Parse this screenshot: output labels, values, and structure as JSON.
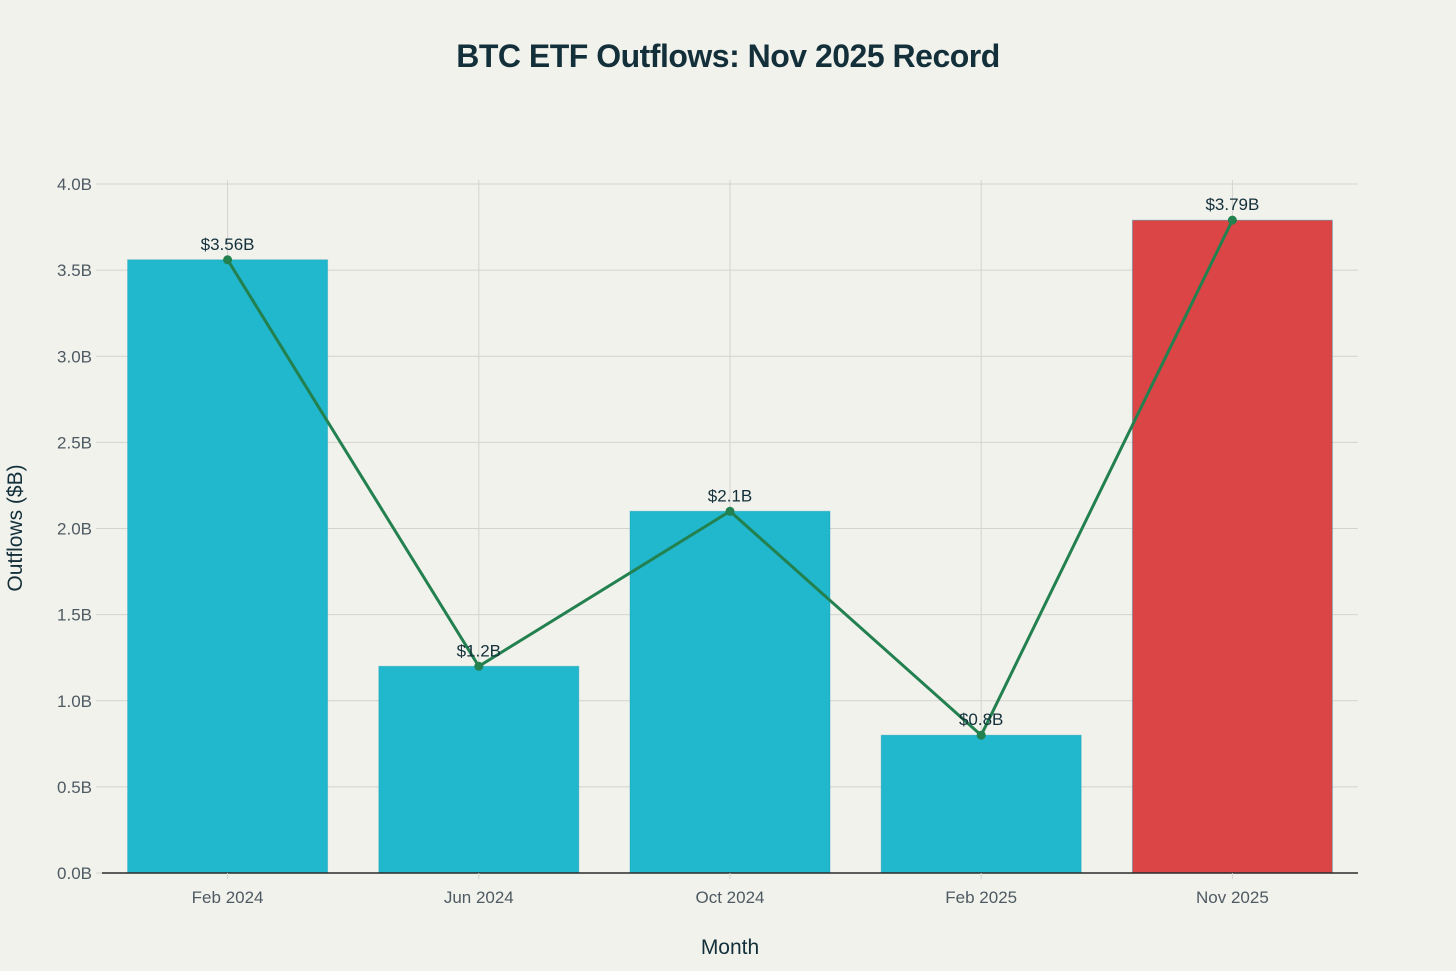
{
  "chart_data": {
    "type": "bar",
    "title": "BTC ETF Outflows: Nov 2025 Record",
    "xlabel": "Month",
    "ylabel": "Outflows ($B)",
    "categories": [
      "Feb 2024",
      "Jun 2024",
      "Oct 2024",
      "Feb 2025",
      "Nov 2025"
    ],
    "values": [
      3.56,
      1.2,
      2.1,
      0.8,
      3.79
    ],
    "data_labels": [
      "$3.56B",
      "$1.2B",
      "$2.1B",
      "$0.8B",
      "$3.79B"
    ],
    "bar_colors": [
      "#21b7cc",
      "#21b7cc",
      "#21b7cc",
      "#21b7cc",
      "#db4545"
    ],
    "overlay_line": {
      "type": "line",
      "values": [
        3.56,
        1.2,
        2.1,
        0.8,
        3.79
      ],
      "color": "#23804f",
      "markers": true
    },
    "ylim": [
      0,
      4.0
    ],
    "yticks": [
      0,
      0.5,
      1.0,
      1.5,
      2.0,
      2.5,
      3.0,
      3.5,
      4.0
    ],
    "ytick_labels": [
      "0.0B",
      "0.5B",
      "1.0B",
      "1.5B",
      "2.0B",
      "2.5B",
      "3.0B",
      "3.5B",
      "4.0B"
    ],
    "grid": true,
    "legend": null
  },
  "colors": {
    "background": "#f2f2ed",
    "bar_default": "#21b7cc",
    "bar_highlight": "#db4545",
    "line": "#23804f",
    "grid": "#d3d3cf",
    "text": "#13303a"
  }
}
